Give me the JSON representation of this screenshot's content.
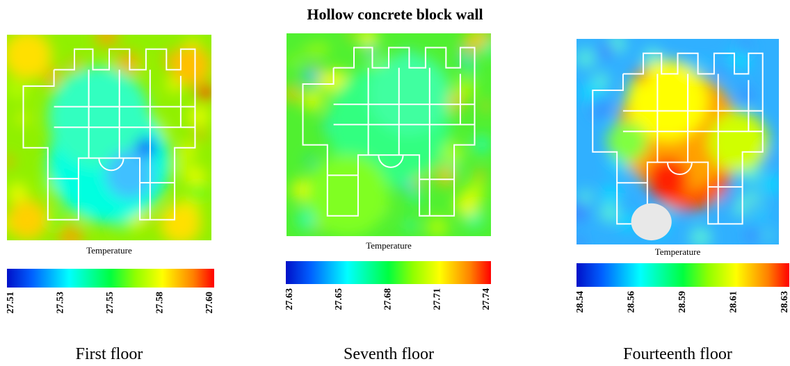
{
  "title": "Hollow concrete block wall",
  "panels": [
    {
      "caption": "First floor",
      "legend_title": "Temperature",
      "colorbar_ticks": [
        "27.51",
        "27.53",
        "27.55",
        "27.58",
        "27.60"
      ]
    },
    {
      "caption": "Seventh floor",
      "legend_title": "Temperature",
      "colorbar_ticks": [
        "27.63",
        "27.65",
        "27.68",
        "27.71",
        "27.74"
      ]
    },
    {
      "caption": "Fourteenth floor",
      "legend_title": "Temperature",
      "colorbar_ticks": [
        "28.54",
        "28.56",
        "28.59",
        "28.61",
        "28.63"
      ]
    }
  ]
}
